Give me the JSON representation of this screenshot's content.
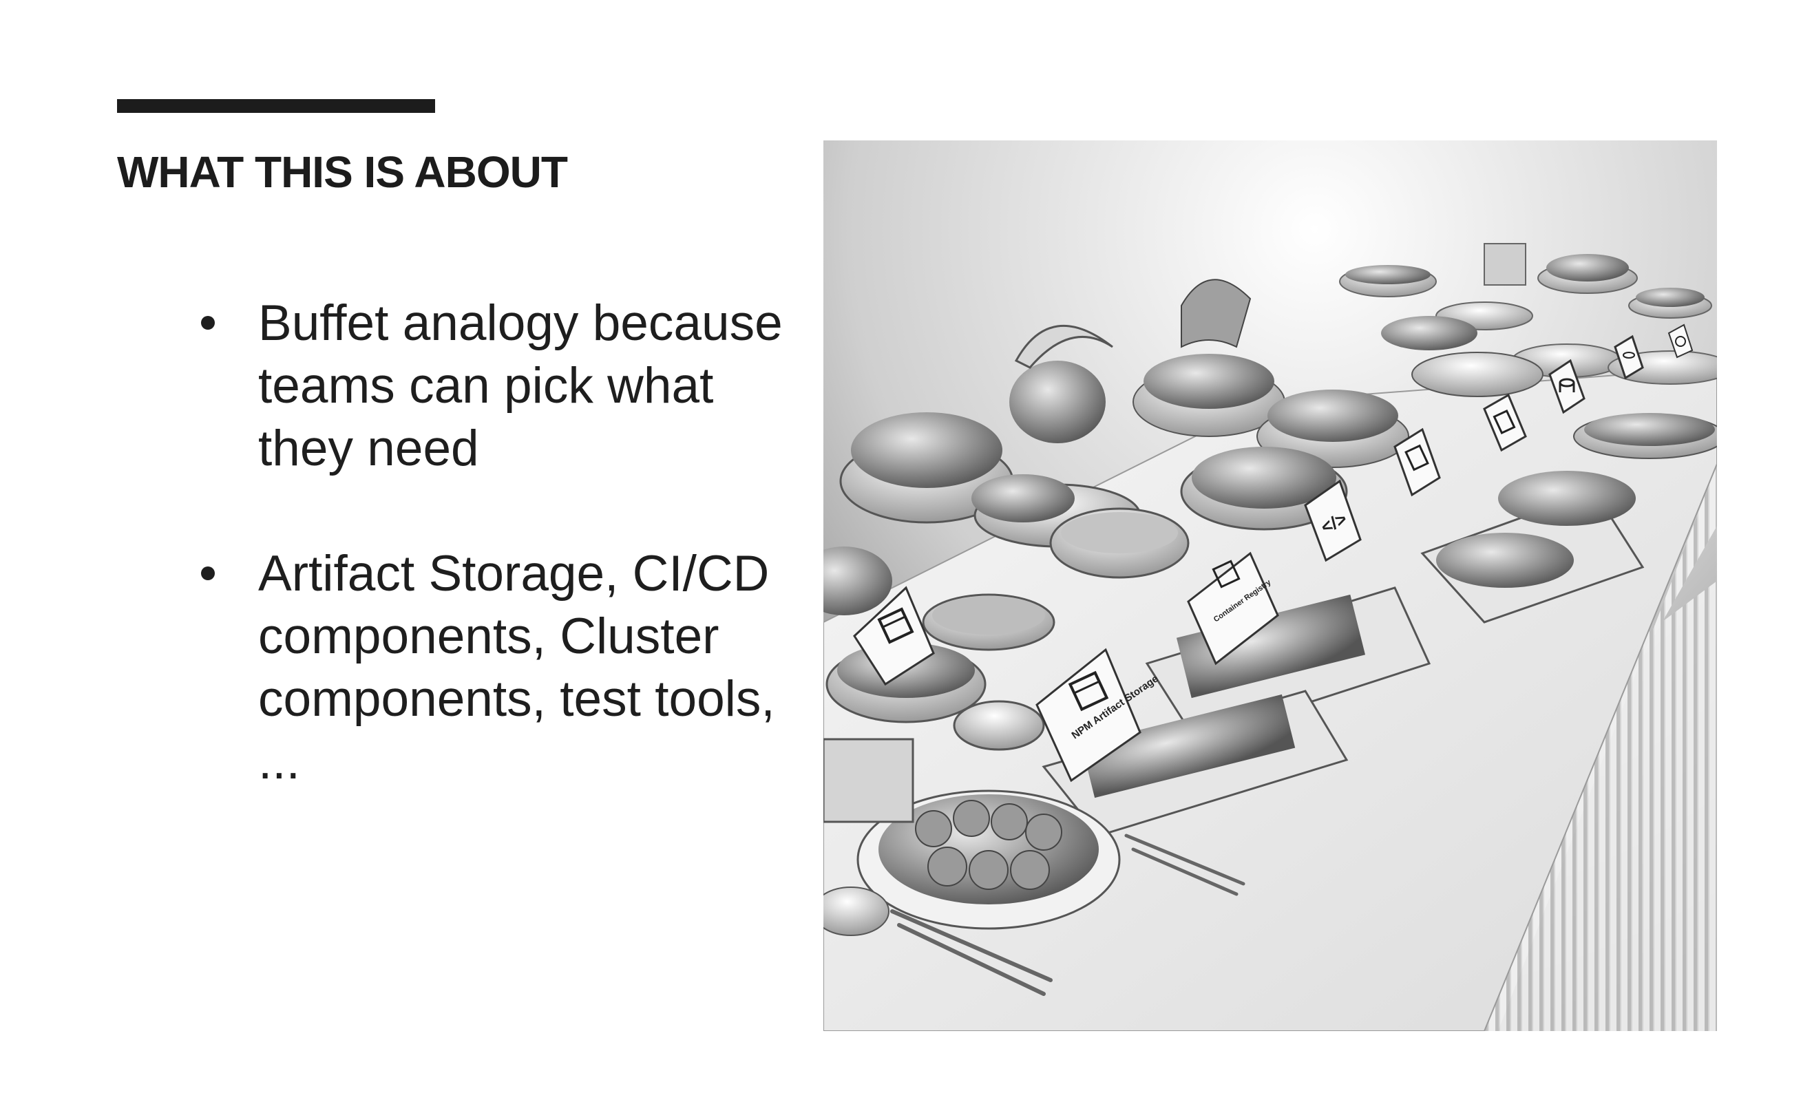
{
  "slide": {
    "title": "WHAT THIS IS ABOUT",
    "bullets": [
      "Buffet analogy because teams can pick what they need",
      "Artifact Storage, CI/CD components, Cluster components, test tools, ..."
    ]
  },
  "picture": {
    "signs": {
      "npm": "NPM Artifact Storage",
      "container": "Container Registry"
    },
    "icons": [
      "package-icon",
      "code-icon",
      "document-icon",
      "database-icon",
      "refresh-icon"
    ]
  }
}
